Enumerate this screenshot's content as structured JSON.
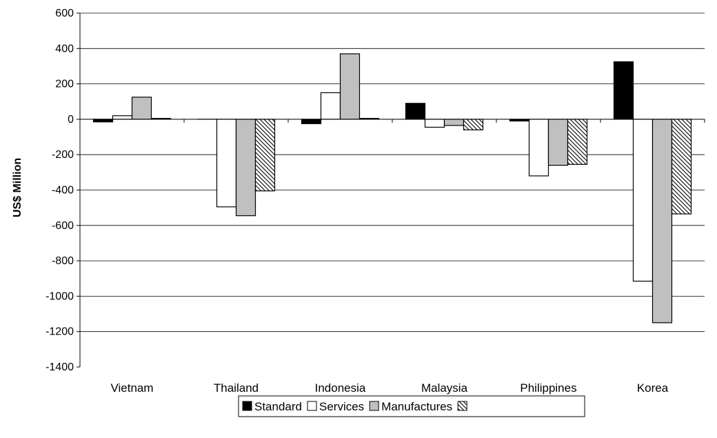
{
  "chart_data": {
    "type": "bar",
    "title": "",
    "xlabel": "",
    "ylabel": "US$ Million",
    "ylim": [
      -1400,
      600
    ],
    "yticks": [
      600,
      400,
      200,
      0,
      -200,
      -400,
      -600,
      -800,
      -1000,
      -1200,
      -1400
    ],
    "grid": true,
    "legend_position": "bottom",
    "categories": [
      "Vietnam",
      "Thailand",
      "Indonesia",
      "Malaysia",
      "Philippines",
      "Korea"
    ],
    "series": [
      {
        "name": "Standard",
        "fill": "#000000",
        "pattern": "solid",
        "values": [
          -15,
          0,
          -25,
          90,
          -10,
          325
        ]
      },
      {
        "name": "Services",
        "fill": "#ffffff",
        "pattern": "solid",
        "values": [
          20,
          -495,
          150,
          -45,
          -320,
          -915
        ]
      },
      {
        "name": "Manufactures",
        "fill": "#c0c0c0",
        "pattern": "solid",
        "values": [
          125,
          -545,
          370,
          -35,
          -260,
          -1150
        ]
      },
      {
        "name": "",
        "fill": "#ffffff",
        "pattern": "diagonal-hatch",
        "values": [
          5,
          -405,
          5,
          -60,
          -255,
          -535
        ]
      }
    ]
  }
}
